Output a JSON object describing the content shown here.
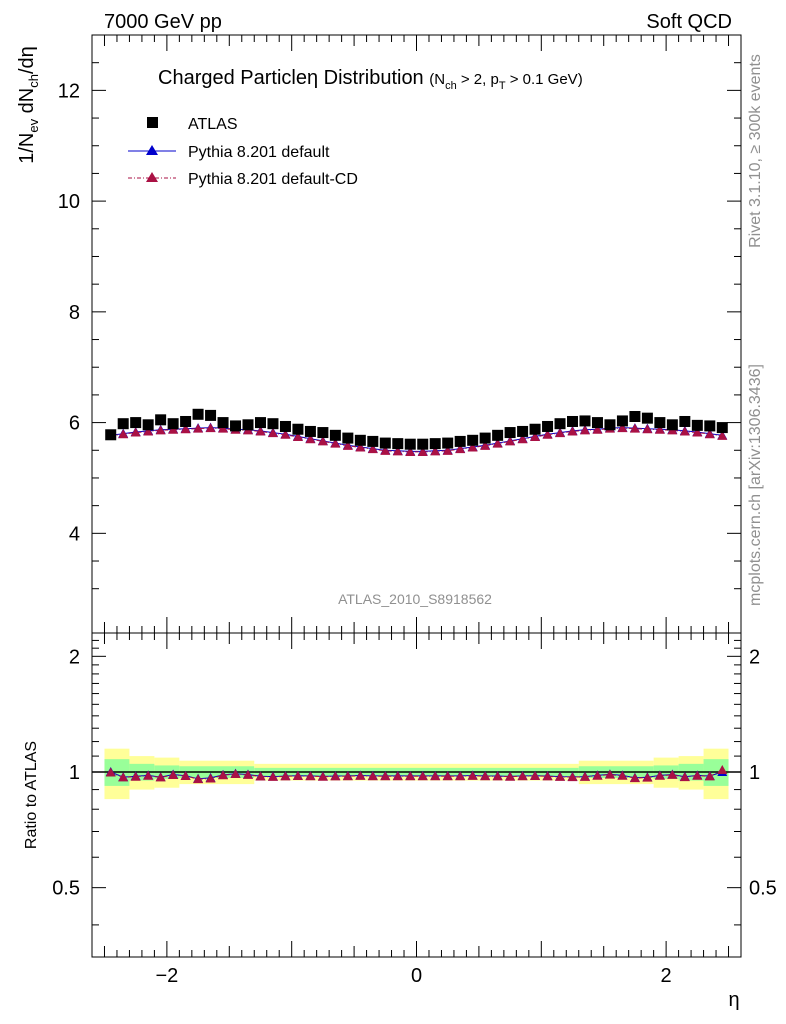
{
  "header": {
    "left": "7000 GeV pp",
    "right": "Soft QCD"
  },
  "side_labels": {
    "rivet": "Rivet 3.1.10, ≥ 300k events",
    "mcplots": "mcplots.cern.ch [arXiv:1306.3436]"
  },
  "chart_data": [
    {
      "type": "scatter",
      "title_main": "Charged Particleη Distribution",
      "title_cond": {
        "open": "(N",
        "sub1": "ch",
        "mid": " > 2, p",
        "sub2": "T",
        "close": " > 0.1 GeV)"
      },
      "ylabel": {
        "p1": "1/N",
        "s1": "ev",
        "p2": " dN",
        "s2": "ch",
        "p3": "/dη"
      },
      "analysis_id": "ATLAS_2010_S8918562",
      "xlim": [
        -2.6,
        2.6
      ],
      "ylim": [
        2.2,
        13.0
      ],
      "yticks": [
        4,
        6,
        8,
        10,
        12
      ],
      "x": [
        -2.45,
        -2.35,
        -2.25,
        -2.15,
        -2.05,
        -1.95,
        -1.85,
        -1.75,
        -1.65,
        -1.55,
        -1.45,
        -1.35,
        -1.25,
        -1.15,
        -1.05,
        -0.95,
        -0.85,
        -0.75,
        -0.65,
        -0.55,
        -0.45,
        -0.35,
        -0.25,
        -0.15,
        -0.05,
        0.05,
        0.15,
        0.25,
        0.35,
        0.45,
        0.55,
        0.65,
        0.75,
        0.85,
        0.95,
        1.05,
        1.15,
        1.25,
        1.35,
        1.45,
        1.55,
        1.65,
        1.75,
        1.85,
        1.95,
        2.05,
        2.15,
        2.25,
        2.35,
        2.45
      ],
      "series": [
        {
          "name": "ATLAS",
          "color": "#000000",
          "marker": "square",
          "values": [
            5.78,
            5.98,
            6.0,
            5.96,
            6.05,
            5.98,
            6.02,
            6.15,
            6.13,
            6.0,
            5.94,
            5.96,
            6.0,
            5.98,
            5.93,
            5.88,
            5.84,
            5.82,
            5.77,
            5.72,
            5.68,
            5.66,
            5.63,
            5.62,
            5.61,
            5.61,
            5.62,
            5.63,
            5.66,
            5.68,
            5.72,
            5.77,
            5.82,
            5.84,
            5.88,
            5.93,
            5.98,
            6.02,
            6.03,
            6.0,
            5.96,
            6.03,
            6.11,
            6.08,
            6.0,
            5.96,
            6.02,
            5.95,
            5.94,
            5.91
          ]
        },
        {
          "name": "Pythia 8.201 default",
          "color": "#0000cc",
          "marker": "triangle",
          "values": [
            5.77,
            5.8,
            5.83,
            5.85,
            5.87,
            5.88,
            5.89,
            5.9,
            5.91,
            5.9,
            5.88,
            5.87,
            5.85,
            5.82,
            5.79,
            5.75,
            5.71,
            5.67,
            5.63,
            5.59,
            5.56,
            5.53,
            5.5,
            5.49,
            5.48,
            5.48,
            5.49,
            5.5,
            5.53,
            5.56,
            5.59,
            5.63,
            5.67,
            5.71,
            5.75,
            5.79,
            5.82,
            5.85,
            5.87,
            5.88,
            5.9,
            5.91,
            5.9,
            5.89,
            5.88,
            5.87,
            5.85,
            5.83,
            5.8,
            5.77
          ]
        },
        {
          "name": "Pythia 8.201 default-CD",
          "color": "#aa1144",
          "marker": "triangle",
          "values": [
            5.76,
            5.79,
            5.82,
            5.84,
            5.86,
            5.87,
            5.88,
            5.89,
            5.9,
            5.89,
            5.87,
            5.86,
            5.84,
            5.81,
            5.78,
            5.74,
            5.7,
            5.66,
            5.62,
            5.58,
            5.55,
            5.52,
            5.49,
            5.48,
            5.47,
            5.47,
            5.48,
            5.49,
            5.52,
            5.55,
            5.58,
            5.62,
            5.66,
            5.7,
            5.74,
            5.78,
            5.81,
            5.84,
            5.86,
            5.87,
            5.89,
            5.9,
            5.89,
            5.88,
            5.87,
            5.86,
            5.84,
            5.82,
            5.79,
            5.76
          ]
        }
      ],
      "legend_placement": "top-left"
    },
    {
      "type": "scatter",
      "ylabel": "Ratio to ATLAS",
      "xlabel": "η",
      "xlim": [
        -2.6,
        2.6
      ],
      "ylim": [
        0.33,
        2.3
      ],
      "ylog": true,
      "yticks": [
        0.5,
        1,
        2
      ],
      "xticks": [
        -2,
        0,
        2
      ],
      "uncertainty_bands": {
        "x_edges": [
          -2.5,
          -2.3,
          -2.1,
          -1.9,
          -1.3,
          1.3,
          1.9,
          2.1,
          2.3,
          2.5
        ],
        "stat_half_width": [
          0.08,
          0.05,
          0.04,
          0.035,
          0.025,
          0.035,
          0.04,
          0.05,
          0.08
        ],
        "total_half_width": [
          0.15,
          0.1,
          0.09,
          0.07,
          0.05,
          0.07,
          0.09,
          0.1,
          0.15
        ],
        "stat_color": "#99ff99",
        "total_color": "#ffff99"
      },
      "series": [
        {
          "name": "Pythia 8.201 default",
          "color": "#0000cc",
          "values": [
            1.0,
            0.97,
            0.975,
            0.98,
            0.97,
            0.985,
            0.978,
            0.96,
            0.965,
            0.983,
            0.99,
            0.985,
            0.975,
            0.973,
            0.976,
            0.978,
            0.977,
            0.974,
            0.976,
            0.977,
            0.979,
            0.977,
            0.977,
            0.977,
            0.977,
            0.977,
            0.977,
            0.977,
            0.977,
            0.979,
            0.977,
            0.976,
            0.974,
            0.977,
            0.978,
            0.976,
            0.973,
            0.972,
            0.973,
            0.98,
            0.986,
            0.98,
            0.966,
            0.969,
            0.98,
            0.985,
            0.972,
            0.98,
            0.976,
            1.0
          ]
        },
        {
          "name": "Pythia 8.201 default-CD",
          "color": "#aa1144",
          "values": [
            0.997,
            0.968,
            0.972,
            0.978,
            0.968,
            0.982,
            0.976,
            0.958,
            0.962,
            0.981,
            0.988,
            0.983,
            0.973,
            0.971,
            0.974,
            0.976,
            0.975,
            0.972,
            0.974,
            0.975,
            0.977,
            0.975,
            0.975,
            0.975,
            0.975,
            0.975,
            0.975,
            0.975,
            0.975,
            0.977,
            0.975,
            0.974,
            0.972,
            0.975,
            0.976,
            0.974,
            0.971,
            0.97,
            0.971,
            0.978,
            0.984,
            0.978,
            0.964,
            0.967,
            0.978,
            0.983,
            0.97,
            0.978,
            0.974,
            1.012
          ]
        }
      ]
    }
  ]
}
